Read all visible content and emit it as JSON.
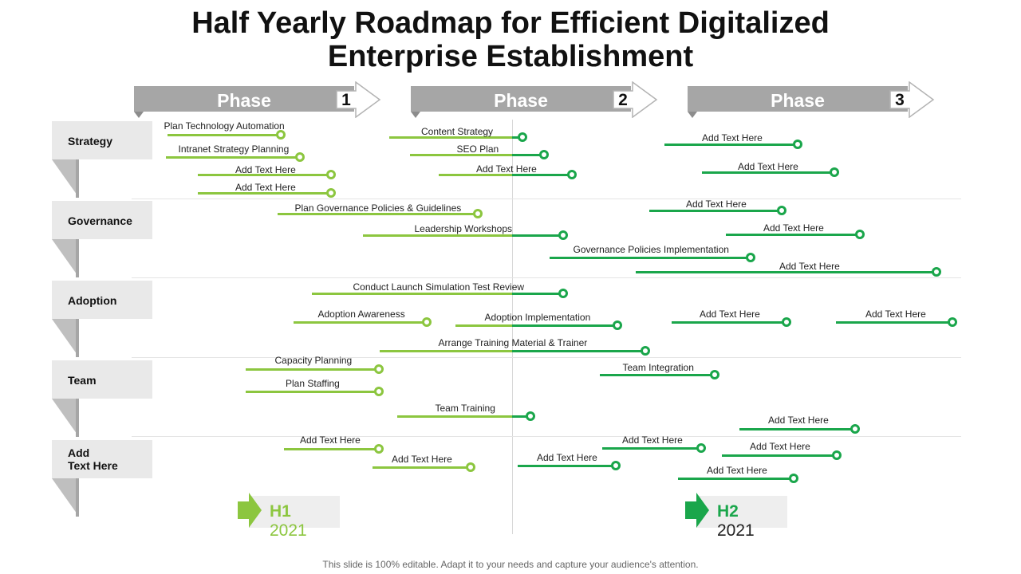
{
  "title_line1": "Half Yearly Roadmap for Efficient Digitalized",
  "title_line2": "Enterprise Establishment",
  "phases": [
    {
      "label": "Phase",
      "num": "1"
    },
    {
      "label": "Phase",
      "num": "2"
    },
    {
      "label": "Phase",
      "num": "3"
    }
  ],
  "rows": [
    {
      "label": "Strategy"
    },
    {
      "label": "Governance"
    },
    {
      "label": "Adoption"
    },
    {
      "label": "Team"
    },
    {
      "label": "Add\nText Here"
    }
  ],
  "tasks": [
    {
      "text": "Plan Technology Automation"
    },
    {
      "text": "Intranet Strategy Planning"
    },
    {
      "text": "Add Text Here"
    },
    {
      "text": "Add Text Here"
    },
    {
      "text": "Content Strategy"
    },
    {
      "text": "SEO Plan"
    },
    {
      "text": "Add Text Here"
    },
    {
      "text": "Add Text Here"
    },
    {
      "text": "Add Text Here"
    },
    {
      "text": "Plan Governance Policies & Guidelines"
    },
    {
      "text": "Leadership Workshops"
    },
    {
      "text": "Governance Policies Implementation"
    },
    {
      "text": "Add Text Here"
    },
    {
      "text": "Add Text Here"
    },
    {
      "text": "Add Text Here"
    },
    {
      "text": "Conduct Launch Simulation Test  Review"
    },
    {
      "text": "Adoption Awareness"
    },
    {
      "text": "Adoption Implementation"
    },
    {
      "text": "Add Text Here"
    },
    {
      "text": "Add Text Here"
    },
    {
      "text": "Arrange Training Material & Trainer"
    },
    {
      "text": "Capacity Planning"
    },
    {
      "text": "Plan Staffing"
    },
    {
      "text": "Team Integration"
    },
    {
      "text": "Team Training"
    },
    {
      "text": "Add Text Here"
    },
    {
      "text": "Add Text Here"
    },
    {
      "text": "Add Text Here"
    },
    {
      "text": "Add Text Here"
    },
    {
      "text": "Add Text Here"
    },
    {
      "text": "Add Text Here"
    },
    {
      "text": "Add Text Here"
    }
  ],
  "halves": [
    {
      "h": "H1",
      "year": "2021"
    },
    {
      "h": "H2",
      "year": "2021"
    }
  ],
  "footer": "This slide is 100% editable. Adapt it to your needs and capture your audience's attention.",
  "colors": {
    "light_green": "#8cc63f",
    "dark_green": "#1aa64b",
    "phase_gray": "#a6a6a6",
    "label_gray": "#e9e9e9"
  }
}
